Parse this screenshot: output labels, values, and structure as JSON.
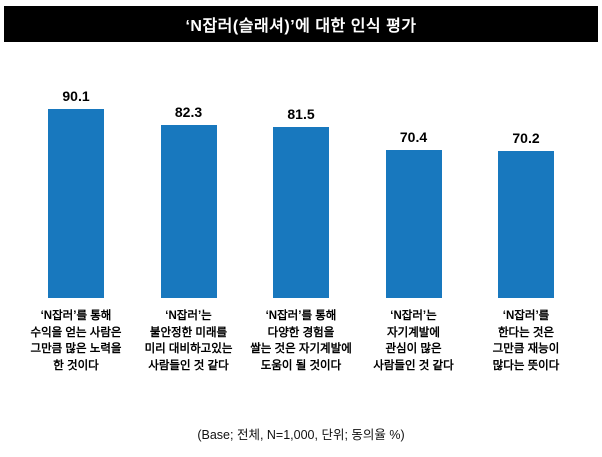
{
  "header": {
    "title": "‘N잡러(슬래셔)’에 대한 인식 평가"
  },
  "colors": {
    "bar": "#1878be",
    "title_bg": "#000000",
    "value_text": "#000000"
  },
  "footer": {
    "base_note": "(Base; 전체, N=1,000, 단위; 동의율 %)"
  },
  "chart_data": {
    "type": "bar",
    "title": "‘N잡러(슬래셔)’에 대한 인식 평가",
    "categories": [
      "‘N잡러’를 통해\n수익을 얻는 사람은\n그만큼 많은 노력을\n한 것이다",
      "‘N잡러’는\n불안정한 미래를\n미리 대비하고있는\n사람들인 것 같다",
      "‘N잡러’를 통해\n다양한 경험을\n쌀는 것은 자기계발에\n도움이 될 것이다",
      "‘N잡러’는\n자기계발에\n관심이 많은\n사람들인 것 같다",
      "‘N잡러’를\n한다는 것은\n그만큼 재능이\n많다는 뜻이다"
    ],
    "values": [
      90.1,
      82.3,
      81.5,
      70.4,
      70.2
    ],
    "value_labels": [
      "90.1",
      "82.3",
      "81.5",
      "70.4",
      "70.2"
    ],
    "xlabel": "",
    "ylabel": "동의율 %",
    "ylim": [
      0,
      100
    ],
    "grid": false,
    "legend": "none",
    "unit_note": "(Base; 전체, N=1,000, 단위; 동의율 %)"
  }
}
